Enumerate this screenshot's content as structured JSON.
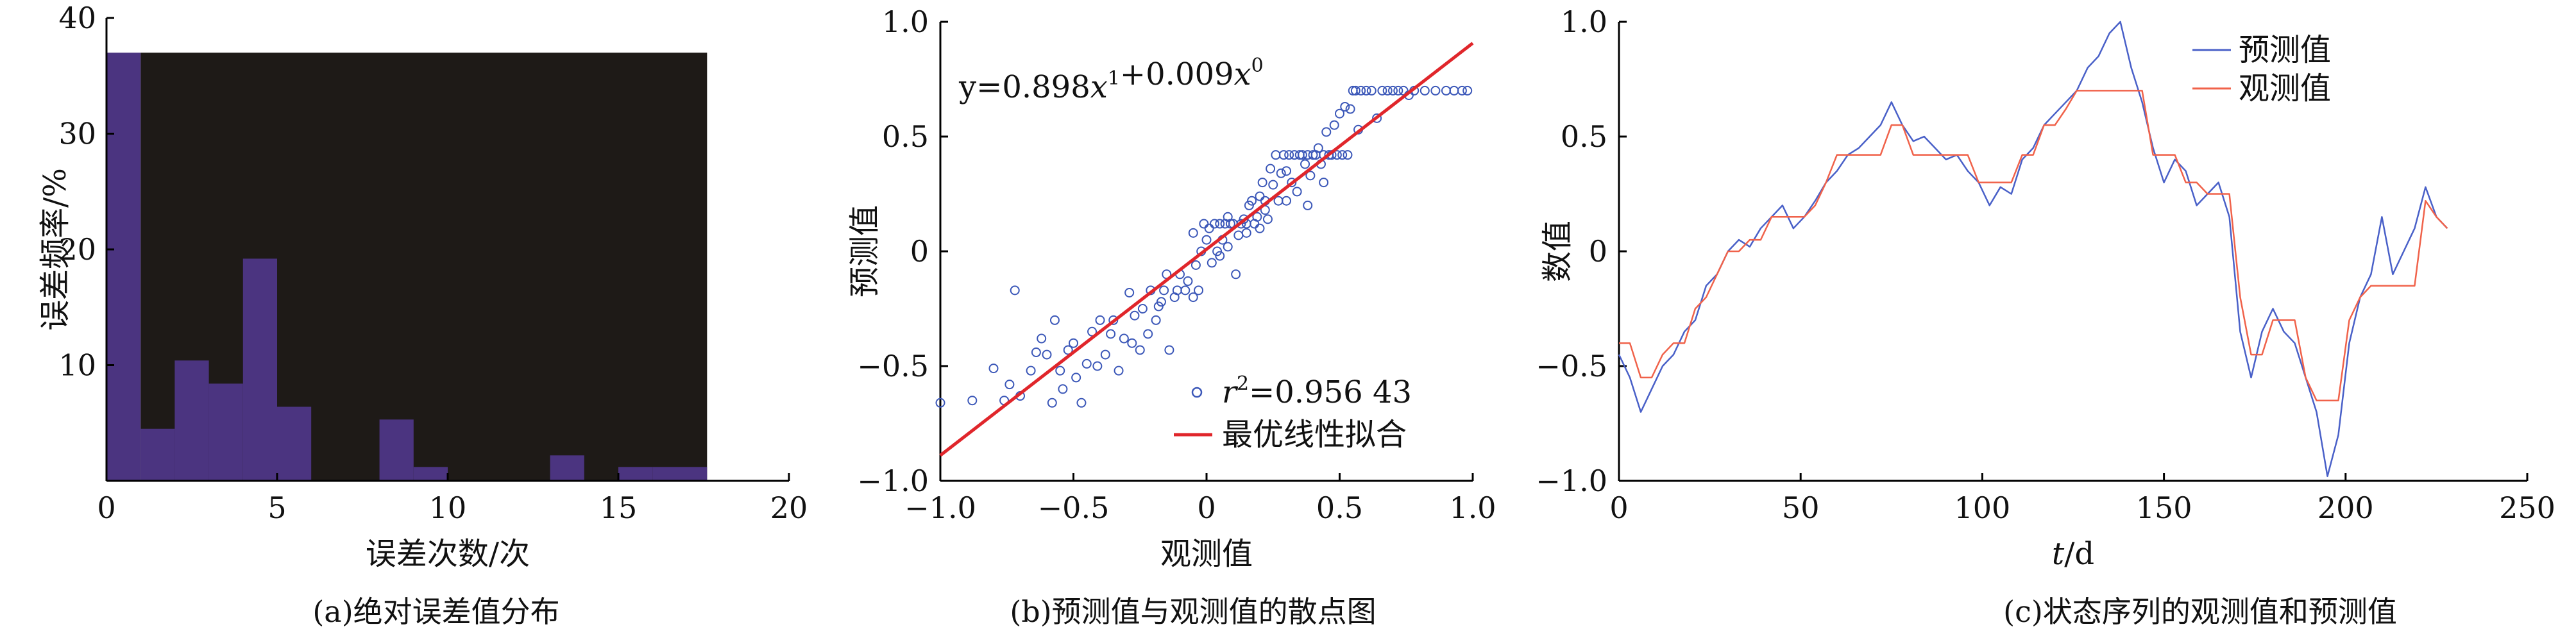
{
  "colors": {
    "hist_bar": "#4b3480",
    "hist_bg": "#1e1a17",
    "scatter_point": "#3b57b8",
    "fit_line": "#e0262b",
    "pred_line": "#4960c8",
    "obs_line": "#f0624a"
  },
  "chart_data": [
    {
      "type": "bar",
      "caption": "(a)绝对误差值分布",
      "xlabel": "误差次数/次",
      "ylabel": "误差频率/%",
      "xlim": [
        0,
        20
      ],
      "ylim": [
        0,
        40
      ],
      "xticks": [
        0,
        5,
        10,
        15,
        20
      ],
      "yticks": [
        10,
        20,
        30,
        40
      ],
      "background_region": {
        "x": [
          1,
          17.6
        ],
        "y": [
          0,
          37
        ]
      },
      "bin_edges": [
        0,
        1,
        2,
        3,
        4,
        5,
        6,
        7,
        8,
        9,
        10,
        11,
        12,
        13,
        14,
        15,
        16,
        17.6
      ],
      "values": [
        37,
        4.5,
        10.4,
        8.4,
        19.2,
        6.4,
        0,
        0,
        5.3,
        1.2,
        0,
        0,
        0,
        2.2,
        0,
        1.2,
        1.2
      ]
    },
    {
      "type": "scatter",
      "caption": "(b)预测值与观测值的散点图",
      "xlabel": "观测值",
      "ylabel": "预测值",
      "xlim": [
        -1.0,
        1.0
      ],
      "ylim": [
        -1.0,
        1.0
      ],
      "xticks": [
        -1.0,
        -0.5,
        0,
        0.5,
        1.0
      ],
      "xtick_labels": [
        "−1.0",
        "−0.5",
        "0",
        "0.5",
        "1.0"
      ],
      "yticks": [
        -1.0,
        -0.5,
        0,
        0.5,
        1.0
      ],
      "ytick_labels": [
        "−1.0",
        "−0.5",
        "0",
        "0.5",
        "1.0"
      ],
      "equation": {
        "base": "y=0.898",
        "v1": "x",
        "e1": "1",
        "mid": "+0.009",
        "v2": "x",
        "e2": "0"
      },
      "fit": {
        "slope": 0.898,
        "intercept": 0.009
      },
      "legend": [
        {
          "name_prefix": "r",
          "name_sup": "2",
          "name_rest": "=0.956 43",
          "marker": "circle"
        },
        {
          "name": "最优线性拟合",
          "marker": "line"
        }
      ],
      "points": [
        [
          -1.0,
          -0.66
        ],
        [
          -0.88,
          -0.65
        ],
        [
          -0.8,
          -0.51
        ],
        [
          -0.76,
          -0.65
        ],
        [
          -0.74,
          -0.58
        ],
        [
          -0.72,
          -0.17
        ],
        [
          -0.7,
          -0.63
        ],
        [
          -0.66,
          -0.52
        ],
        [
          -0.64,
          -0.44
        ],
        [
          -0.62,
          -0.38
        ],
        [
          -0.6,
          -0.45
        ],
        [
          -0.58,
          -0.66
        ],
        [
          -0.57,
          -0.3
        ],
        [
          -0.55,
          -0.52
        ],
        [
          -0.54,
          -0.6
        ],
        [
          -0.52,
          -0.43
        ],
        [
          -0.5,
          -0.4
        ],
        [
          -0.49,
          -0.55
        ],
        [
          -0.47,
          -0.66
        ],
        [
          -0.45,
          -0.49
        ],
        [
          -0.43,
          -0.35
        ],
        [
          -0.41,
          -0.5
        ],
        [
          -0.4,
          -0.3
        ],
        [
          -0.38,
          -0.45
        ],
        [
          -0.36,
          -0.36
        ],
        [
          -0.35,
          -0.3
        ],
        [
          -0.33,
          -0.52
        ],
        [
          -0.31,
          -0.38
        ],
        [
          -0.29,
          -0.18
        ],
        [
          -0.27,
          -0.28
        ],
        [
          -0.25,
          -0.43
        ],
        [
          -0.24,
          -0.25
        ],
        [
          -0.22,
          -0.36
        ],
        [
          -0.21,
          -0.17
        ],
        [
          -0.19,
          -0.3
        ],
        [
          -0.17,
          -0.22
        ],
        [
          -0.16,
          -0.17
        ],
        [
          -0.14,
          -0.43
        ],
        [
          -0.12,
          -0.2
        ],
        [
          -0.11,
          -0.17
        ],
        [
          -0.1,
          -0.1
        ],
        [
          -0.08,
          -0.17
        ],
        [
          -0.07,
          -0.13
        ],
        [
          -0.05,
          -0.2
        ],
        [
          -0.04,
          -0.06
        ],
        [
          -0.03,
          -0.17
        ],
        [
          -0.02,
          0.0
        ],
        [
          -0.01,
          0.12
        ],
        [
          0.0,
          0.05
        ],
        [
          0.01,
          0.1
        ],
        [
          0.02,
          -0.05
        ],
        [
          0.03,
          0.12
        ],
        [
          0.04,
          0.0
        ],
        [
          0.05,
          0.12
        ],
        [
          0.06,
          0.05
        ],
        [
          0.07,
          0.12
        ],
        [
          0.08,
          0.02
        ],
        [
          0.09,
          0.12
        ],
        [
          0.1,
          0.12
        ],
        [
          0.11,
          -0.1
        ],
        [
          0.12,
          0.07
        ],
        [
          0.13,
          0.12
        ],
        [
          0.14,
          0.14
        ],
        [
          0.15,
          0.12
        ],
        [
          0.16,
          0.2
        ],
        [
          0.17,
          0.22
        ],
        [
          0.18,
          0.12
        ],
        [
          0.19,
          0.15
        ],
        [
          0.2,
          0.24
        ],
        [
          0.21,
          0.3
        ],
        [
          0.22,
          0.22
        ],
        [
          0.23,
          0.14
        ],
        [
          0.24,
          0.36
        ],
        [
          0.25,
          0.29
        ],
        [
          0.26,
          0.42
        ],
        [
          0.27,
          0.22
        ],
        [
          0.28,
          0.34
        ],
        [
          0.29,
          0.42
        ],
        [
          0.3,
          0.22
        ],
        [
          0.31,
          0.42
        ],
        [
          0.32,
          0.3
        ],
        [
          0.33,
          0.42
        ],
        [
          0.34,
          0.26
        ],
        [
          0.35,
          0.42
        ],
        [
          0.36,
          0.42
        ],
        [
          0.37,
          0.38
        ],
        [
          0.38,
          0.42
        ],
        [
          0.39,
          0.33
        ],
        [
          0.4,
          0.42
        ],
        [
          0.41,
          0.42
        ],
        [
          0.42,
          0.45
        ],
        [
          0.43,
          0.38
        ],
        [
          0.44,
          0.42
        ],
        [
          0.45,
          0.52
        ],
        [
          0.46,
          0.42
        ],
        [
          0.47,
          0.42
        ],
        [
          0.48,
          0.55
        ],
        [
          0.49,
          0.42
        ],
        [
          0.5,
          0.6
        ],
        [
          0.51,
          0.42
        ],
        [
          0.52,
          0.63
        ],
        [
          0.53,
          0.42
        ],
        [
          0.54,
          0.62
        ],
        [
          0.55,
          0.7
        ],
        [
          0.56,
          0.7
        ],
        [
          0.57,
          0.53
        ],
        [
          0.58,
          0.7
        ],
        [
          0.6,
          0.7
        ],
        [
          0.62,
          0.7
        ],
        [
          0.64,
          0.58
        ],
        [
          0.66,
          0.7
        ],
        [
          0.68,
          0.7
        ],
        [
          0.7,
          0.7
        ],
        [
          0.72,
          0.7
        ],
        [
          0.74,
          0.7
        ],
        [
          0.76,
          0.68
        ],
        [
          0.78,
          0.7
        ],
        [
          0.82,
          0.7
        ],
        [
          0.86,
          0.7
        ],
        [
          0.9,
          0.7
        ],
        [
          0.93,
          0.7
        ],
        [
          0.96,
          0.7
        ],
        [
          0.98,
          0.7
        ],
        [
          -0.15,
          -0.1
        ],
        [
          -0.05,
          0.08
        ],
        [
          0.05,
          -0.02
        ],
        [
          0.15,
          0.08
        ],
        [
          0.22,
          0.18
        ],
        [
          0.3,
          0.35
        ],
        [
          0.38,
          0.2
        ],
        [
          -0.28,
          -0.4
        ],
        [
          -0.18,
          -0.24
        ],
        [
          0.08,
          0.15
        ],
        [
          0.2,
          0.1
        ],
        [
          0.44,
          0.3
        ]
      ]
    },
    {
      "type": "line",
      "caption": "(c)状态序列的观测值和预测值",
      "xlabel_var": "t",
      "xlabel_unit": "/d",
      "ylabel": "数值",
      "xlim": [
        0,
        250
      ],
      "ylim": [
        -1.0,
        1.0
      ],
      "xticks": [
        0,
        50,
        100,
        150,
        200,
        250
      ],
      "yticks": [
        -1.0,
        -0.5,
        0,
        0.5,
        1.0
      ],
      "ytick_labels": [
        "−1.0",
        "−0.5",
        "0",
        "0.5",
        "1.0"
      ],
      "series": [
        {
          "name": "预测值",
          "x": [
            0,
            3,
            6,
            9,
            12,
            15,
            18,
            21,
            24,
            27,
            30,
            33,
            36,
            39,
            42,
            45,
            48,
            51,
            54,
            57,
            60,
            63,
            66,
            69,
            72,
            75,
            78,
            81,
            84,
            87,
            90,
            93,
            96,
            99,
            102,
            105,
            108,
            111,
            114,
            117,
            120,
            123,
            126,
            129,
            132,
            135,
            138,
            141,
            144,
            147,
            150,
            153,
            156,
            159,
            162,
            165,
            168,
            171,
            174,
            177,
            180,
            183,
            186,
            189,
            192,
            195,
            198,
            201,
            204,
            207,
            210,
            213,
            216,
            219,
            222,
            225,
            228
          ],
          "values": [
            -0.45,
            -0.55,
            -0.7,
            -0.6,
            -0.5,
            -0.45,
            -0.35,
            -0.3,
            -0.15,
            -0.1,
            0.0,
            0.05,
            0.02,
            0.1,
            0.15,
            0.2,
            0.1,
            0.15,
            0.22,
            0.3,
            0.35,
            0.42,
            0.45,
            0.5,
            0.55,
            0.65,
            0.55,
            0.48,
            0.5,
            0.45,
            0.4,
            0.42,
            0.35,
            0.3,
            0.2,
            0.28,
            0.25,
            0.4,
            0.45,
            0.55,
            0.6,
            0.65,
            0.7,
            0.8,
            0.85,
            0.95,
            1.0,
            0.8,
            0.65,
            0.45,
            0.3,
            0.4,
            0.35,
            0.2,
            0.25,
            0.3,
            0.15,
            -0.35,
            -0.55,
            -0.35,
            -0.25,
            -0.35,
            -0.4,
            -0.55,
            -0.7,
            -0.98,
            -0.8,
            -0.4,
            -0.2,
            -0.1,
            0.15,
            -0.1,
            0.0,
            0.1,
            0.28,
            0.15,
            0.1
          ]
        },
        {
          "name": "观测值",
          "x": [
            0,
            3,
            6,
            9,
            12,
            15,
            18,
            21,
            24,
            27,
            30,
            33,
            36,
            39,
            42,
            45,
            48,
            51,
            54,
            57,
            60,
            63,
            66,
            69,
            72,
            75,
            78,
            81,
            84,
            87,
            90,
            93,
            96,
            99,
            102,
            105,
            108,
            111,
            114,
            117,
            120,
            123,
            126,
            129,
            132,
            135,
            138,
            141,
            144,
            147,
            150,
            153,
            156,
            159,
            162,
            165,
            168,
            171,
            174,
            177,
            180,
            183,
            186,
            189,
            192,
            195,
            198,
            201,
            204,
            207,
            210,
            213,
            216,
            219,
            222,
            225,
            228
          ],
          "values": [
            -0.4,
            -0.4,
            -0.55,
            -0.55,
            -0.45,
            -0.4,
            -0.4,
            -0.25,
            -0.2,
            -0.1,
            0.0,
            0.0,
            0.05,
            0.05,
            0.15,
            0.15,
            0.15,
            0.15,
            0.2,
            0.3,
            0.42,
            0.42,
            0.42,
            0.42,
            0.42,
            0.55,
            0.55,
            0.42,
            0.42,
            0.42,
            0.42,
            0.42,
            0.42,
            0.3,
            0.3,
            0.3,
            0.3,
            0.42,
            0.42,
            0.55,
            0.55,
            0.62,
            0.7,
            0.7,
            0.7,
            0.7,
            0.7,
            0.7,
            0.7,
            0.42,
            0.42,
            0.42,
            0.3,
            0.3,
            0.25,
            0.25,
            0.25,
            -0.2,
            -0.45,
            -0.45,
            -0.3,
            -0.3,
            -0.3,
            -0.55,
            -0.65,
            -0.65,
            -0.65,
            -0.3,
            -0.2,
            -0.15,
            -0.15,
            -0.15,
            -0.15,
            -0.15,
            0.22,
            0.15,
            0.1
          ]
        }
      ]
    }
  ]
}
